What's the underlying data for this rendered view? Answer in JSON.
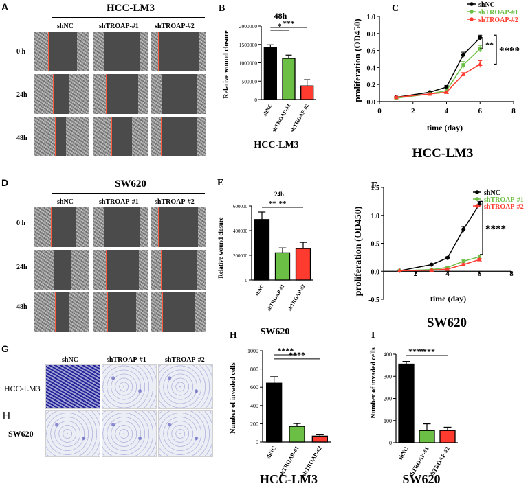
{
  "panels": {
    "A": {
      "letter": "A",
      "title": "HCC-LM3",
      "cols": [
        "shNC",
        "shTROAP-#1",
        "shTROAP-#2"
      ],
      "rows": [
        "0 h",
        "24h",
        "48h"
      ]
    },
    "D": {
      "letter": "D",
      "title": "SW620",
      "cols": [
        "shNC",
        "shTROAP-#1",
        "shTROAP-#2"
      ],
      "rows": [
        "0 h",
        "24h",
        "48h"
      ]
    },
    "G": {
      "letter": "G",
      "sublabel": "H",
      "cols": [
        "shNC",
        "shTROAP-#1",
        "shTROAP-#2"
      ],
      "rows": [
        "HCC-LM3",
        "SW620"
      ]
    }
  },
  "colors": {
    "shNC": "#000000",
    "shTROAP1": "#6cbf45",
    "shTROAP2": "#ff3b2f",
    "wound_edge": "#ff5a3c",
    "invade_stain": "#3c3ca5"
  },
  "chart_data": [
    {
      "id": "B",
      "letter": "B",
      "type": "bar",
      "title": "48h",
      "ylabel": "Relative wound closure",
      "xlabel": "",
      "caption": "HCC-LM3",
      "categories": [
        "shNC",
        "shTROAP-#1",
        "shTROAP-#2"
      ],
      "values": [
        1420000,
        1120000,
        370000
      ],
      "errors": [
        70000,
        90000,
        170000
      ],
      "ylim": [
        0,
        2000000
      ],
      "yticks": [
        0,
        500000,
        1000000,
        1500000,
        2000000
      ],
      "significance": [
        {
          "from": 0,
          "to": 1,
          "label": "*"
        },
        {
          "from": 0,
          "to": 2,
          "label": "***"
        }
      ]
    },
    {
      "id": "C",
      "letter": "C",
      "type": "line",
      "ylabel": "proliferation (OD450)",
      "xlabel": "time  (day)",
      "caption": "HCC-LM3",
      "xlim": [
        0,
        8
      ],
      "ylim": [
        0,
        1.0
      ],
      "xticks": [
        0,
        2,
        4,
        6,
        8
      ],
      "yticks": [
        0,
        0.2,
        0.4,
        0.6,
        0.8,
        1.0
      ],
      "series": [
        {
          "name": "shNC",
          "x": [
            1,
            3,
            4,
            5,
            6
          ],
          "y": [
            0.05,
            0.11,
            0.17,
            0.55,
            0.75
          ],
          "err": [
            0.01,
            0.01,
            0.02,
            0.03,
            0.03
          ]
        },
        {
          "name": "shTROAP-#1",
          "x": [
            1,
            3,
            4,
            5,
            6
          ],
          "y": [
            0.04,
            0.09,
            0.13,
            0.43,
            0.62
          ],
          "err": [
            0.01,
            0.01,
            0.02,
            0.04,
            0.04
          ]
        },
        {
          "name": "shTROAP-#2",
          "x": [
            1,
            3,
            4,
            5,
            6
          ],
          "y": [
            0.05,
            0.09,
            0.11,
            0.32,
            0.44
          ],
          "err": [
            0.01,
            0.01,
            0.01,
            0.02,
            0.04
          ]
        }
      ],
      "significance": [
        {
          "label": "**"
        },
        {
          "label": "****"
        }
      ]
    },
    {
      "id": "E",
      "letter": "E",
      "type": "bar",
      "title": "24h",
      "ylabel": "Relative wound closure",
      "xlabel": "",
      "caption": "SW620",
      "categories": [
        "shNC",
        "shTROAP-#1",
        "shTROAP-#2"
      ],
      "values": [
        490000,
        220000,
        255000
      ],
      "errors": [
        60000,
        40000,
        50000
      ],
      "ylim": [
        0,
        600000
      ],
      "yticks": [
        0,
        200000,
        400000,
        600000
      ],
      "significance": [
        {
          "from": 0,
          "to": 1,
          "label": "**"
        },
        {
          "from": 0,
          "to": 2,
          "label": "**"
        }
      ]
    },
    {
      "id": "F",
      "letter": "F",
      "type": "line",
      "ylabel": "proliferation (OD450)",
      "xlabel": "time  (day)",
      "caption": "SW620",
      "xlim": [
        0,
        8
      ],
      "ylim": [
        -0.5,
        1.5
      ],
      "xticks": [
        2,
        4,
        6,
        8
      ],
      "yticks": [
        -0.5,
        0.0,
        0.5,
        1.0,
        1.5
      ],
      "series": [
        {
          "name": "shNC",
          "x": [
            1,
            3,
            4,
            5,
            6
          ],
          "y": [
            0.01,
            0.12,
            0.24,
            0.75,
            1.2
          ],
          "err": [
            0.01,
            0.01,
            0.02,
            0.05,
            0.05
          ]
        },
        {
          "name": "shTROAP-#1",
          "x": [
            1,
            3,
            4,
            5,
            6
          ],
          "y": [
            0.01,
            0.03,
            0.07,
            0.18,
            0.26
          ],
          "err": [
            0.01,
            0.01,
            0.01,
            0.02,
            0.03
          ]
        },
        {
          "name": "shTROAP-#2",
          "x": [
            1,
            3,
            4,
            5,
            6
          ],
          "y": [
            0.01,
            0.02,
            0.04,
            0.12,
            0.21
          ],
          "err": [
            0.01,
            0.01,
            0.01,
            0.02,
            0.02
          ]
        }
      ],
      "significance": [
        {
          "label": "****"
        }
      ]
    },
    {
      "id": "H",
      "letter": "H",
      "type": "bar",
      "ylabel": "Number of invaded cells",
      "xlabel": "",
      "caption": "HCC-LM3",
      "categories": [
        "shNC",
        "shTROAP-#1",
        "shTROAP-#2"
      ],
      "values": [
        645,
        172,
        65
      ],
      "errors": [
        70,
        30,
        15
      ],
      "ylim": [
        0,
        1000
      ],
      "yticks": [
        0,
        200,
        400,
        600,
        800,
        1000
      ],
      "significance": [
        {
          "from": 0,
          "to": 1,
          "label": "****"
        },
        {
          "from": 0,
          "to": 2,
          "label": "****"
        }
      ]
    },
    {
      "id": "I",
      "letter": "I",
      "type": "bar",
      "ylabel": "Number of invaded cells",
      "xlabel": "",
      "caption": "SW620",
      "categories": [
        "shNC",
        "shTROAP-#1",
        "shTROAP-#2"
      ],
      "values": [
        355,
        55,
        55
      ],
      "errors": [
        12,
        30,
        15
      ],
      "ylim": [
        0,
        400
      ],
      "yticks": [
        0,
        100,
        200,
        300,
        400
      ],
      "significance": [
        {
          "from": 0,
          "to": 1,
          "label": "****"
        },
        {
          "from": 0,
          "to": 2,
          "label": "****"
        }
      ]
    }
  ]
}
